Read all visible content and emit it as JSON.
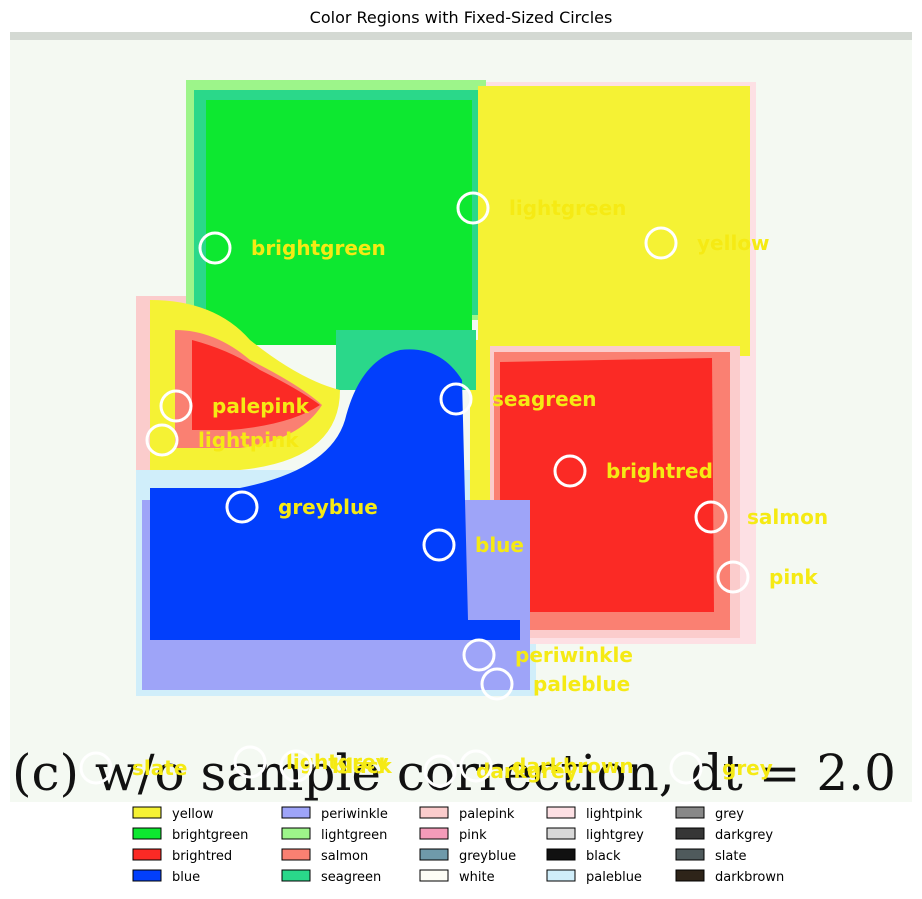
{
  "chart_data": {
    "type": "image-annotation",
    "title": "Color Regions with Fixed-Sized Circles",
    "caption": "(c) w/o sample correction, dt = 2.0",
    "colors": {
      "yellow": "#f5f234",
      "brightgreen": "#0de830",
      "brightred": "#fb2a25",
      "blue": "#023ffc",
      "periwinkle": "#9ea4f8",
      "lightgreen": "#9df58a",
      "salmon": "#fa8072",
      "seagreen": "#2ad88a",
      "palepink": "#fbcccc",
      "pink": "#f49bb9",
      "greyblue": "#6f9aaa",
      "white": "#fdfdf5",
      "lightpink": "#fde0e4",
      "lightgrey": "#d8d8d8",
      "black": "#111111",
      "paleblue": "#d0eefa",
      "grey": "#888888",
      "darkgrey": "#363636",
      "slate": "#4f5a5c",
      "darkbrown": "#2e2419",
      "background": "#f4f9f2",
      "marker": "#ffffff",
      "label": "#f5ea14"
    },
    "annotations": [
      {
        "label": "brightgreen"
      },
      {
        "label": "lightgreen"
      },
      {
        "label": "yellow"
      },
      {
        "label": "palepink"
      },
      {
        "label": "lightpink"
      },
      {
        "label": "seagreen"
      },
      {
        "label": "brightred"
      },
      {
        "label": "greyblue"
      },
      {
        "label": "salmon"
      },
      {
        "label": "blue"
      },
      {
        "label": "pink"
      },
      {
        "label": "periwinkle"
      },
      {
        "label": "paleblue"
      },
      {
        "label": "slate"
      },
      {
        "label": "lightgrey"
      },
      {
        "label": "black"
      },
      {
        "label": "darkgrey"
      },
      {
        "label": "darkbrown"
      },
      {
        "label": "grey"
      }
    ],
    "legend": {
      "placement": "bottom-center",
      "columns": 5,
      "entries": [
        "yellow",
        "brightgreen",
        "brightred",
        "blue",
        "periwinkle",
        "lightgreen",
        "salmon",
        "seagreen",
        "palepink",
        "pink",
        "greyblue",
        "white",
        "lightpink",
        "lightgrey",
        "black",
        "paleblue",
        "grey",
        "darkgrey",
        "slate",
        "darkbrown"
      ]
    }
  }
}
